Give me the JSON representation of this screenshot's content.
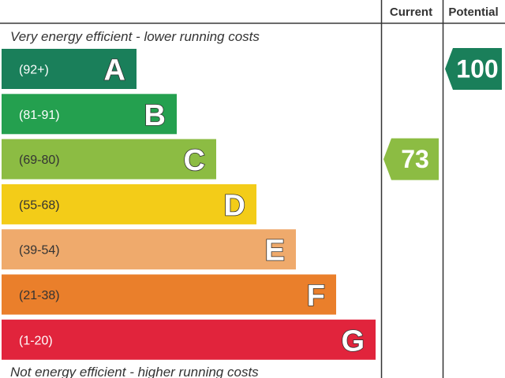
{
  "chart_data": {
    "type": "bar",
    "columns": {
      "current": "Current",
      "potential": "Potential"
    },
    "top_caption": "Very energy efficient - lower running costs",
    "bottom_caption": "Not energy efficient - higher running costs",
    "bands": [
      {
        "letter": "A",
        "range": "(92+)",
        "min": 92,
        "max": 100,
        "color": "#1a7f5a"
      },
      {
        "letter": "B",
        "range": "(81-91)",
        "min": 81,
        "max": 91,
        "color": "#24a04f"
      },
      {
        "letter": "C",
        "range": "(69-80)",
        "min": 69,
        "max": 80,
        "color": "#8cbc43"
      },
      {
        "letter": "D",
        "range": "(55-68)",
        "min": 55,
        "max": 68,
        "color": "#f3cc18"
      },
      {
        "letter": "E",
        "range": "(39-54)",
        "min": 39,
        "max": 54,
        "color": "#efaa6c"
      },
      {
        "letter": "F",
        "range": "(21-38)",
        "min": 21,
        "max": 38,
        "color": "#ea7f2b"
      },
      {
        "letter": "G",
        "range": "(1-20)",
        "min": 1,
        "max": 20,
        "color": "#e1243c"
      }
    ],
    "current": {
      "value": 73,
      "band": "C",
      "color": "#8cbc43"
    },
    "potential": {
      "value": 100,
      "band": "A",
      "color": "#1a7f5a"
    }
  }
}
